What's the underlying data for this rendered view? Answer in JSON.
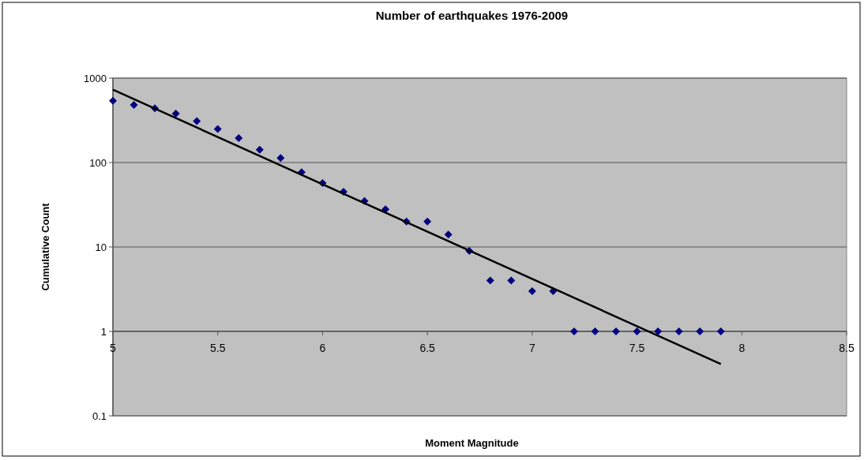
{
  "chart_data": {
    "type": "scatter",
    "title": "Number of earthquakes 1976-2009",
    "xlabel": "Moment Magnitude",
    "ylabel": "Cumulative Count",
    "series": [
      {
        "color": "#000080",
        "marker": "diamond",
        "x": [
          5,
          5.1,
          5.2,
          5.3,
          5.4,
          5.5,
          5.6,
          5.7,
          5.8,
          5.9,
          6,
          6.1,
          6.2,
          6.3,
          6.4,
          6.5,
          6.6,
          6.7,
          6.8,
          6.9,
          7,
          7.1,
          7.2,
          7.3,
          7.4,
          7.5,
          7.6,
          7.7,
          7.8,
          7.9
        ],
        "values": [
          540,
          480,
          440,
          380,
          310,
          250,
          195,
          142,
          113,
          77,
          57,
          45,
          35,
          28,
          20,
          20,
          14,
          9,
          4,
          4,
          3,
          3,
          1,
          1,
          1,
          1,
          1,
          1,
          1,
          1
        ]
      },
      {
        "type": "line",
        "color": "#000000",
        "marker": "none",
        "line_style": "solid",
        "x": [
          5,
          7.9
        ],
        "values": [
          730,
          0.41
        ]
      }
    ],
    "xlim": [
      5,
      8.5
    ],
    "xticks": [
      5,
      5.5,
      6,
      6.5,
      7,
      7.5,
      8,
      8.5
    ],
    "ylim": [
      0.1,
      1000
    ],
    "yticks": [
      0.1,
      1,
      10,
      100,
      1000
    ],
    "log": "y",
    "grid": "y"
  }
}
